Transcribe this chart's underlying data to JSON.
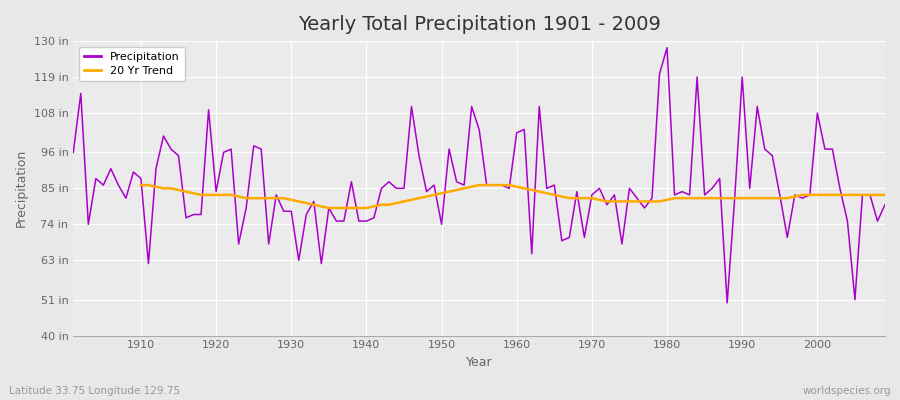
{
  "title": "Yearly Total Precipitation 1901 - 2009",
  "xlabel": "Year",
  "ylabel": "Precipitation",
  "footnote_left": "Latitude 33.75 Longitude 129.75",
  "footnote_right": "worldspecies.org",
  "legend_labels": [
    "Precipitation",
    "20 Yr Trend"
  ],
  "line_color": "#aa00cc",
  "trend_color": "#ffaa00",
  "bg_color": "#e8e8e8",
  "plot_bg_color": "#ebebeb",
  "grid_color": "#ffffff",
  "ylim": [
    40,
    130
  ],
  "yticks": [
    40,
    51,
    63,
    74,
    85,
    96,
    108,
    119,
    130
  ],
  "ytick_labels": [
    "40 in",
    "51 in",
    "63 in",
    "74 in",
    "85 in",
    "96 in",
    "108 in",
    "119 in",
    "130 in"
  ],
  "years": [
    1901,
    1902,
    1903,
    1904,
    1905,
    1906,
    1907,
    1908,
    1909,
    1910,
    1911,
    1912,
    1913,
    1914,
    1915,
    1916,
    1917,
    1918,
    1919,
    1920,
    1921,
    1922,
    1923,
    1924,
    1925,
    1926,
    1927,
    1928,
    1929,
    1930,
    1931,
    1932,
    1933,
    1934,
    1935,
    1936,
    1937,
    1938,
    1939,
    1940,
    1941,
    1942,
    1943,
    1944,
    1945,
    1946,
    1947,
    1948,
    1949,
    1950,
    1951,
    1952,
    1953,
    1954,
    1955,
    1956,
    1957,
    1958,
    1959,
    1960,
    1961,
    1962,
    1963,
    1964,
    1965,
    1966,
    1967,
    1968,
    1969,
    1970,
    1971,
    1972,
    1973,
    1974,
    1975,
    1976,
    1977,
    1978,
    1979,
    1980,
    1981,
    1982,
    1983,
    1984,
    1985,
    1986,
    1987,
    1988,
    1989,
    1990,
    1991,
    1992,
    1993,
    1994,
    1995,
    1996,
    1997,
    1998,
    1999,
    2000,
    2001,
    2002,
    2003,
    2004,
    2005,
    2006,
    2007,
    2008,
    2009
  ],
  "precip": [
    96,
    114,
    74,
    88,
    86,
    91,
    86,
    82,
    90,
    88,
    62,
    91,
    101,
    97,
    95,
    76,
    77,
    77,
    109,
    84,
    96,
    97,
    68,
    79,
    98,
    97,
    68,
    83,
    78,
    78,
    63,
    77,
    81,
    62,
    79,
    75,
    75,
    87,
    75,
    75,
    76,
    85,
    87,
    85,
    85,
    110,
    95,
    84,
    86,
    74,
    97,
    87,
    86,
    110,
    103,
    86,
    86,
    86,
    85,
    102,
    103,
    65,
    110,
    85,
    86,
    69,
    70,
    84,
    70,
    83,
    85,
    80,
    83,
    68,
    85,
    82,
    79,
    82,
    120,
    128,
    83,
    84,
    83,
    119,
    83,
    85,
    88,
    50,
    82,
    119,
    85,
    110,
    97,
    95,
    83,
    70,
    83,
    82,
    83,
    108,
    97,
    97,
    85,
    75,
    51,
    83,
    83,
    75,
    80
  ],
  "trend": [
    null,
    null,
    null,
    null,
    null,
    null,
    null,
    null,
    null,
    86,
    86,
    85.5,
    85,
    85,
    84.5,
    84,
    83.5,
    83,
    83,
    83,
    83,
    83,
    82.5,
    82,
    82,
    82,
    82,
    82,
    82,
    81.5,
    81,
    80.5,
    80,
    79.5,
    79,
    79,
    79,
    79,
    79,
    79,
    79.5,
    80,
    80,
    80.5,
    81,
    81.5,
    82,
    82.5,
    83,
    83.5,
    84,
    84.5,
    85,
    85.5,
    86,
    86,
    86,
    86,
    86,
    85.5,
    85,
    84.5,
    84,
    83.5,
    83,
    82.5,
    82,
    82,
    82,
    82,
    81.5,
    81,
    81,
    81,
    81,
    81,
    81,
    81,
    81,
    81.5,
    82,
    82,
    82,
    82,
    82,
    82,
    82,
    82,
    82,
    82,
    82,
    82,
    82,
    82,
    82,
    82,
    82.5,
    83,
    83,
    83,
    83,
    83,
    83,
    83,
    83,
    83,
    83,
    83,
    83
  ]
}
